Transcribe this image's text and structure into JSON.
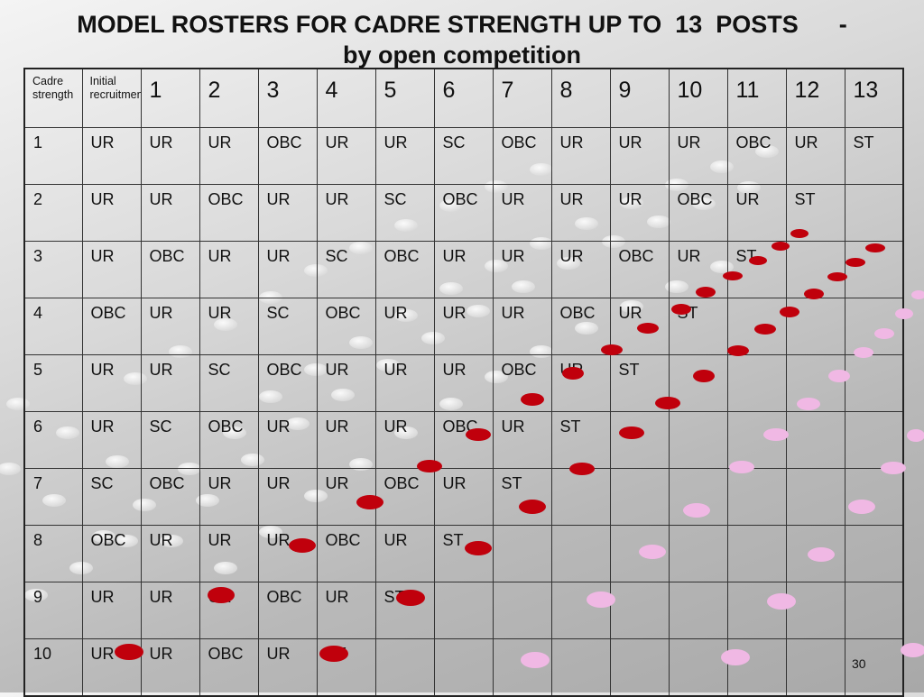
{
  "title": {
    "line1": "MODEL ROSTERS FOR CADRE STRENGTH UP TO  13  POSTS      -",
    "line2": "by open competition"
  },
  "table": {
    "headers": [
      "Cadre strength",
      "Initial recruitment",
      "1",
      "2",
      "3",
      "4",
      "5",
      "6",
      "7",
      "8",
      "9",
      "10",
      "11",
      "12",
      "13"
    ],
    "rows": [
      [
        "1",
        "UR",
        "UR",
        "UR",
        "OBC",
        "UR",
        "UR",
        "SC",
        "OBC",
        "UR",
        "UR",
        "UR",
        "OBC",
        "UR",
        "ST"
      ],
      [
        "2",
        "UR",
        "UR",
        "OBC",
        "UR",
        "UR",
        "SC",
        "OBC",
        "UR",
        "UR",
        "UR",
        "OBC",
        "UR",
        "ST",
        ""
      ],
      [
        "3",
        "UR",
        "OBC",
        "UR",
        "UR",
        "SC",
        "OBC",
        "UR",
        "UR",
        "UR",
        "OBC",
        "UR",
        "ST",
        "",
        ""
      ],
      [
        "4",
        "OBC",
        "UR",
        "UR",
        "SC",
        "OBC",
        "UR",
        "UR",
        "UR",
        "OBC",
        "UR",
        "ST",
        "",
        "",
        ""
      ],
      [
        "5",
        "UR",
        "UR",
        "SC",
        "OBC",
        "UR",
        "UR",
        "UR",
        "OBC",
        "UR",
        "ST",
        "",
        "",
        "",
        ""
      ],
      [
        "6",
        "UR",
        "SC",
        "OBC",
        "UR",
        "UR",
        "UR",
        "OBC",
        "UR",
        "ST",
        "",
        "",
        "",
        "",
        ""
      ],
      [
        "7",
        "SC",
        "OBC",
        "UR",
        "UR",
        "UR",
        "OBC",
        "UR",
        "ST",
        "",
        "",
        "",
        "",
        "",
        ""
      ],
      [
        "8",
        "OBC",
        "UR",
        "UR",
        "UR",
        "OBC",
        "UR",
        "ST",
        "",
        "",
        "",
        "",
        "",
        "",
        ""
      ],
      [
        "9",
        "UR",
        "UR",
        "UR",
        "OBC",
        "UR",
        "ST",
        "",
        "",
        "",
        "",
        "",
        "",
        "",
        ""
      ],
      [
        "10",
        "UR",
        "UR",
        "OBC",
        "UR",
        "ST",
        "",
        "",
        "",
        "",
        "",
        "",
        "",
        "",
        ""
      ]
    ]
  },
  "page_number": "30",
  "colors": {
    "dot_red": "#c0000c",
    "dot_pink": "#f0b8e4",
    "dot_white": "#f2f2f2"
  }
}
